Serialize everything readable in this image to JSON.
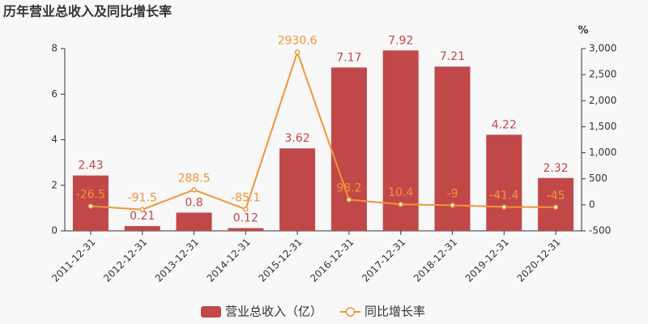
{
  "chart_data": {
    "type": "bar",
    "title": "历年营业总收入及同比增长率",
    "categories": [
      "2011-12-31",
      "2012-12-31",
      "2013-12-31",
      "2014-12-31",
      "2015-12-31",
      "2016-12-31",
      "2017-12-31",
      "2018-12-31",
      "2019-12-31",
      "2020-12-31"
    ],
    "series": [
      {
        "name": "营业总收入（亿）",
        "type": "bar",
        "color": "#c14848",
        "values": [
          2.43,
          0.21,
          0.8,
          0.12,
          3.62,
          7.17,
          7.92,
          7.21,
          4.22,
          2.32
        ]
      },
      {
        "name": "同比增长率",
        "type": "line",
        "axis": "y2",
        "color": "#f0953a",
        "values": [
          -26.5,
          -91.5,
          288.5,
          -85.1,
          2930.6,
          98.2,
          10.4,
          -9,
          -41.4,
          -45
        ]
      }
    ],
    "ylim": [
      0,
      8
    ],
    "yticks": [
      0,
      2,
      4,
      6,
      8
    ],
    "y2label": "%",
    "y2lim": [
      -500,
      3000
    ],
    "y2ticks": [
      -500,
      0,
      500,
      {
        "value": 1000,
        "label": "1,000"
      },
      {
        "value": 1500,
        "label": "1,500"
      },
      {
        "value": 2000,
        "label": "2,000"
      },
      {
        "value": 2500,
        "label": "2,500"
      },
      {
        "value": 3000,
        "label": "3,000"
      }
    ]
  }
}
